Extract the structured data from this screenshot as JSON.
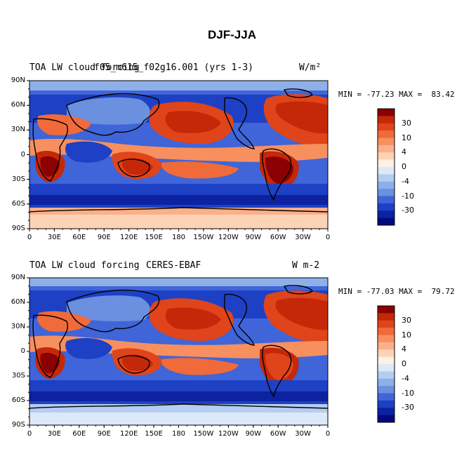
{
  "main_title": "DJF-JJA",
  "panels": [
    {
      "left_title": "TOA LW cloud forcing",
      "center_title": "f05_m615_f02g16.001 (yrs 1-3)",
      "units": "W/m²",
      "min_max": "MIN = -77.23 MAX =  83.42"
    },
    {
      "left_title": "TOA LW cloud forcing",
      "center_title": "CERES-EBAF",
      "units": "W m-2",
      "min_max": "MIN = -77.03 MAX =  79.72"
    }
  ],
  "lat_ticks": [
    "90N",
    "60N",
    "30N",
    "0",
    "30S",
    "60S",
    "90S"
  ],
  "lon_ticks": [
    "0",
    "30E",
    "60E",
    "90E",
    "120E",
    "150E",
    "180",
    "150W",
    "120W",
    "90W",
    "60W",
    "30W",
    "0"
  ],
  "colorbar": {
    "labels": [
      "30",
      "10",
      "4",
      "0",
      "-4",
      "-10",
      "-30"
    ],
    "colors": [
      "#8b0000",
      "#c42808",
      "#e0441a",
      "#f06a3a",
      "#f88f5e",
      "#fbb08a",
      "#fdd3b6",
      "#fff0e2",
      "#dce9f8",
      "#b4cdf0",
      "#8eb0e8",
      "#6a90df",
      "#3f65d8",
      "#1e40c4",
      "#0c22a0",
      "#000a80"
    ]
  }
}
